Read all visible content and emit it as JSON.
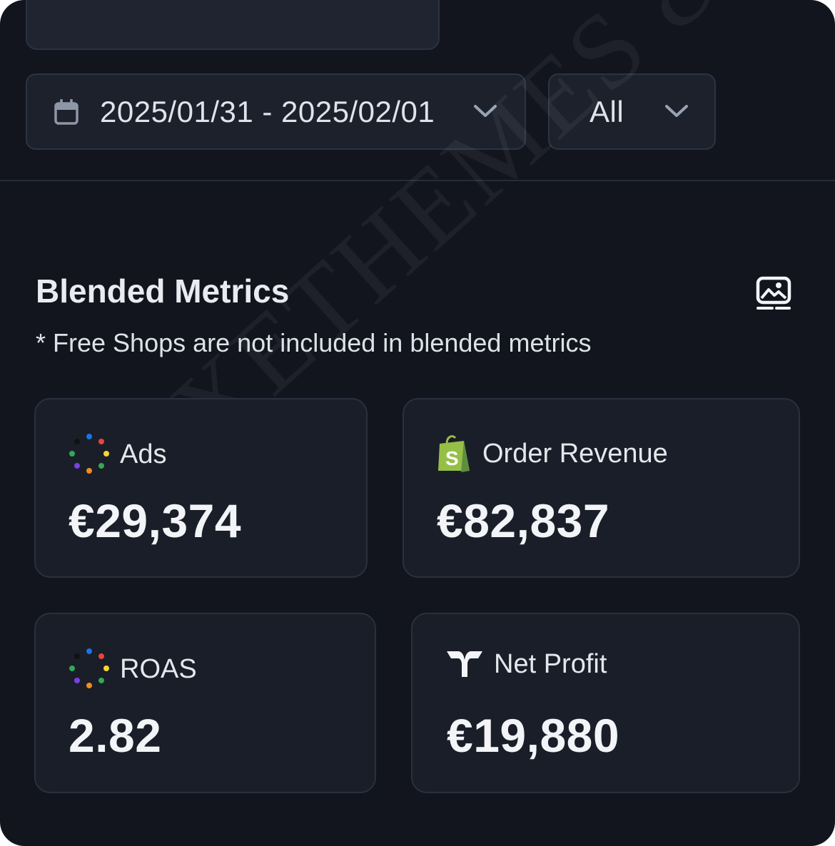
{
  "filters": {
    "date_range": "2025/01/31 - 2025/02/01",
    "segment": "All"
  },
  "section": {
    "title": "Blended Metrics",
    "note": "* Free Shops are not included in blended metrics"
  },
  "metrics": [
    {
      "label": "Ads",
      "value": "€29,374",
      "icon": "ads-dots-icon"
    },
    {
      "label": "Order Revenue",
      "value": "€82,837",
      "icon": "shopify-bag-icon"
    },
    {
      "label": "ROAS",
      "value": "2.82",
      "icon": "ads-dots-icon"
    },
    {
      "label": "Net Profit",
      "value": "€19,880",
      "icon": "brand-logo-icon"
    }
  ],
  "watermark": "LUXETHEMES & CO.",
  "colors": {
    "background": "#12151d",
    "card": "#1a1e28",
    "shopify_green": "#95bf47"
  }
}
